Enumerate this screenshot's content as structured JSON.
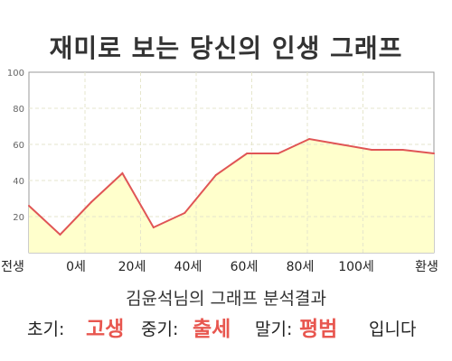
{
  "title": "재미로 보는 당신의 인생 그래프",
  "chart_data": {
    "type": "area",
    "x_tick_labels": [
      "전생",
      "0세",
      "20세",
      "40세",
      "60세",
      "80세",
      "100세",
      "환생"
    ],
    "y_ticks": [
      20,
      40,
      60,
      80,
      100
    ],
    "ylim": [
      0,
      100
    ],
    "grid": true,
    "legend": "none",
    "series": [
      {
        "values": [
          26,
          10,
          28,
          44,
          14,
          22,
          43,
          55,
          55,
          63,
          60,
          57,
          57,
          55
        ]
      }
    ],
    "colors": {
      "fill": "#ffffcc",
      "line": "#e05555",
      "grid": "#e6e6cc"
    }
  },
  "summary": {
    "title": "김윤석님의 그래프 분석결과",
    "early_label": "초기:",
    "early_value": "고생",
    "mid_label": "중기:",
    "mid_value": "출세",
    "late_label": "말기:",
    "late_value": "평범",
    "ending": "입니다",
    "highlight_color": "#e8564f"
  }
}
